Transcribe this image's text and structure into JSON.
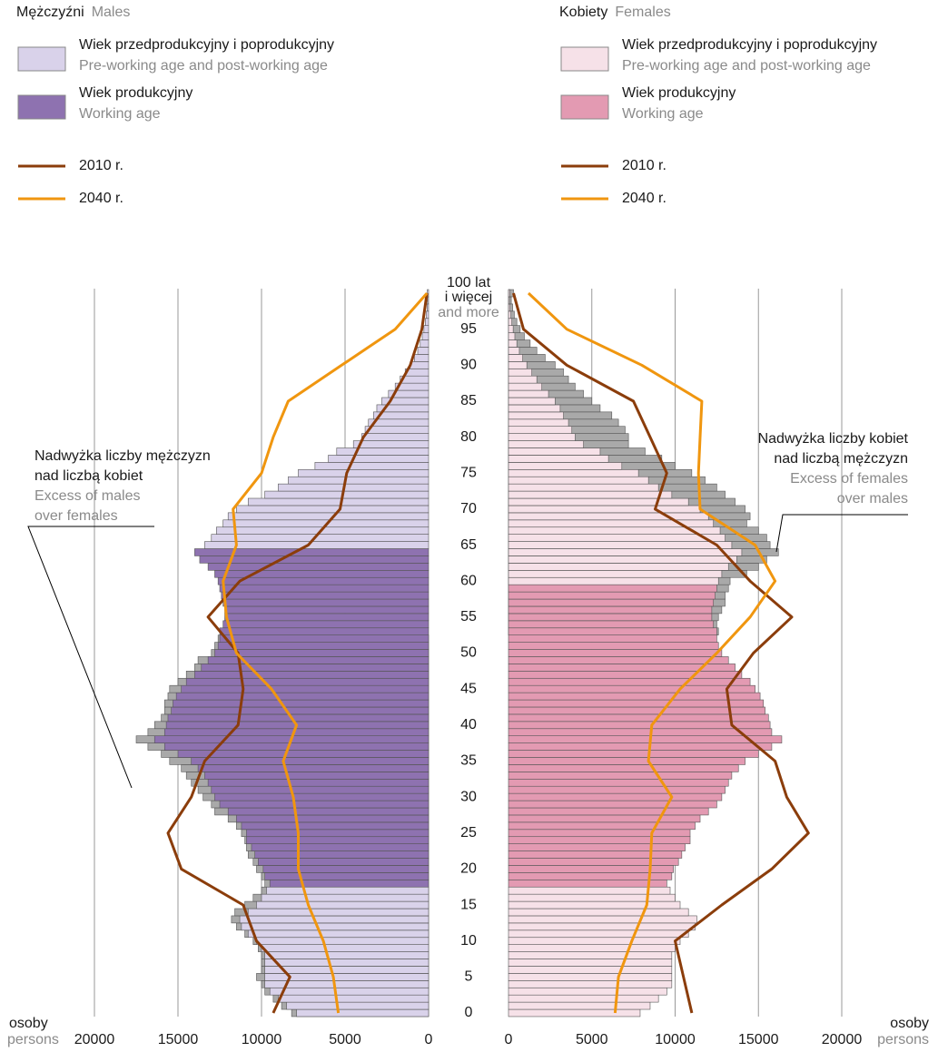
{
  "chart_data": {
    "type": "population-pyramid",
    "ages": [
      0,
      1,
      2,
      3,
      4,
      5,
      6,
      7,
      8,
      9,
      10,
      11,
      12,
      13,
      14,
      15,
      16,
      17,
      18,
      19,
      20,
      21,
      22,
      23,
      24,
      25,
      26,
      27,
      28,
      29,
      30,
      31,
      32,
      33,
      34,
      35,
      36,
      37,
      38,
      39,
      40,
      41,
      42,
      43,
      44,
      45,
      46,
      47,
      48,
      49,
      50,
      51,
      52,
      53,
      54,
      55,
      56,
      57,
      58,
      59,
      60,
      61,
      62,
      63,
      64,
      65,
      66,
      67,
      68,
      69,
      70,
      71,
      72,
      73,
      74,
      75,
      76,
      77,
      78,
      79,
      80,
      81,
      82,
      83,
      84,
      85,
      86,
      87,
      88,
      89,
      90,
      91,
      92,
      93,
      94,
      95,
      96,
      97,
      98,
      99,
      100
    ],
    "male": {
      "name": "Mężczyźni",
      "name_en": "Males",
      "working_age": [
        18,
        64
      ],
      "colors": {
        "nonworking": "#d9d2ea",
        "working": "#8e72b0"
      },
      "values": [
        8200,
        8800,
        9300,
        9800,
        10000,
        10300,
        10000,
        10000,
        10000,
        10200,
        10500,
        11000,
        11500,
        11800,
        11600,
        11000,
        10500,
        10000,
        9800,
        10000,
        10300,
        10500,
        10800,
        10900,
        11000,
        11200,
        11500,
        12000,
        12800,
        13000,
        13500,
        13800,
        14200,
        14500,
        14800,
        15500,
        16000,
        16800,
        17500,
        16800,
        16400,
        16000,
        15800,
        15800,
        15600,
        15500,
        15000,
        14500,
        14000,
        13800,
        13000,
        12800,
        12600,
        12500,
        12300,
        12200,
        12200,
        12300,
        12400,
        12500,
        12600,
        12800,
        13200,
        13700,
        14000,
        13400,
        13000,
        12700,
        12300,
        12000,
        11500,
        10800,
        9800,
        9000,
        8400,
        7800,
        6800,
        6000,
        5500,
        4500,
        4000,
        3800,
        3600,
        3300,
        3100,
        2800,
        2400,
        2000,
        1700,
        1400,
        1100,
        850,
        650,
        500,
        380,
        280,
        200,
        140,
        90,
        60,
        80
      ]
    },
    "female": {
      "name": "Kobiety",
      "name_en": "Females",
      "working_age": [
        18,
        59
      ],
      "colors": {
        "nonworking": "#f6e1e8",
        "working": "#e39ab2"
      },
      "values": [
        7900,
        8500,
        9000,
        9500,
        9800,
        9800,
        9800,
        9800,
        9800,
        10000,
        10300,
        10800,
        11200,
        11300,
        10800,
        10300,
        10000,
        9700,
        9500,
        9800,
        9900,
        10200,
        10400,
        10600,
        10900,
        10900,
        11200,
        11500,
        12000,
        12500,
        12800,
        13000,
        13200,
        13400,
        13800,
        14200,
        15000,
        15800,
        16400,
        15800,
        15700,
        15600,
        15400,
        15300,
        15100,
        14800,
        14500,
        14000,
        13600,
        13200,
        12800,
        12600,
        12500,
        12600,
        12500,
        12600,
        12800,
        13000,
        13000,
        13200,
        13300,
        14300,
        15000,
        15500,
        16200,
        15700,
        15500,
        15000,
        14300,
        14500,
        14200,
        13600,
        13000,
        12500,
        11800,
        11000,
        10000,
        9200,
        8200,
        7200,
        7200,
        7000,
        6600,
        6200,
        5500,
        5000,
        4500,
        4000,
        3600,
        3300,
        2800,
        2200,
        1700,
        1300,
        950,
        700,
        500,
        350,
        250,
        170,
        300
      ]
    },
    "excess_color": "#a9a9a9",
    "legend": {
      "nonworking": {
        "pl": "Wiek przedprodukcyjny i poprodukcyjny",
        "en": "Pre-working age and post-working age"
      },
      "working": {
        "pl": "Wiek produkcyjny",
        "en": "Working age"
      }
    },
    "line_ages": [
      0,
      5,
      10,
      15,
      20,
      25,
      30,
      35,
      40,
      45,
      50,
      55,
      60,
      65,
      70,
      75,
      80,
      85,
      90,
      95,
      100
    ],
    "lines": [
      {
        "name": "2010 r.",
        "color": "#8b3d0b",
        "male": [
          9300,
          8300,
          10300,
          11100,
          14800,
          15600,
          14200,
          13400,
          11400,
          11100,
          11400,
          13200,
          11300,
          7200,
          5300,
          4900,
          3900,
          2300,
          1100,
          400,
          100
        ],
        "female": [
          11000,
          10500,
          10000,
          12800,
          15800,
          18000,
          16700,
          16000,
          13400,
          13100,
          14700,
          17000,
          14500,
          12500,
          8800,
          9500,
          8500,
          7500,
          3500,
          900,
          300
        ]
      },
      {
        "name": "2040 r.",
        "color": "#f0960f",
        "male": [
          5400,
          5700,
          6300,
          7200,
          7800,
          7800,
          8100,
          8700,
          7900,
          9400,
          11500,
          12100,
          12300,
          11500,
          11700,
          10000,
          9300,
          8400,
          5200,
          2000,
          100
        ],
        "female": [
          6400,
          6600,
          7400,
          8300,
          8500,
          8600,
          9800,
          8400,
          8600,
          10300,
          12500,
          14500,
          16000,
          14800,
          11500,
          11400,
          11500,
          11600,
          8000,
          3500,
          1200
        ]
      }
    ],
    "xlim": [
      0,
      20000
    ],
    "xticks": [
      0,
      5000,
      10000,
      15000,
      20000
    ],
    "ylim": [
      -0.5,
      100.5
    ],
    "yticks": [
      0,
      5,
      10,
      15,
      20,
      25,
      30,
      35,
      40,
      45,
      50,
      55,
      60,
      65,
      70,
      75,
      80,
      85,
      90,
      95,
      {
        "value": 100,
        "label": "100 lat"
      }
    ],
    "top_age_label_2": "i więcej",
    "top_age_label_en": "and more",
    "x_unit": "osoby",
    "x_unit_en": "persons",
    "grid": true,
    "annotations": {
      "male_excess": {
        "pl": [
          "Nadwyżka liczby mężczyzn",
          "nad liczbą kobiet"
        ],
        "en": [
          "Excess of males",
          "over females"
        ]
      },
      "female_excess": {
        "pl": [
          "Nadwyżka liczby kobiet",
          "nad liczbą mężczyzn"
        ],
        "en": [
          "Excess of females",
          "over males"
        ]
      }
    }
  }
}
